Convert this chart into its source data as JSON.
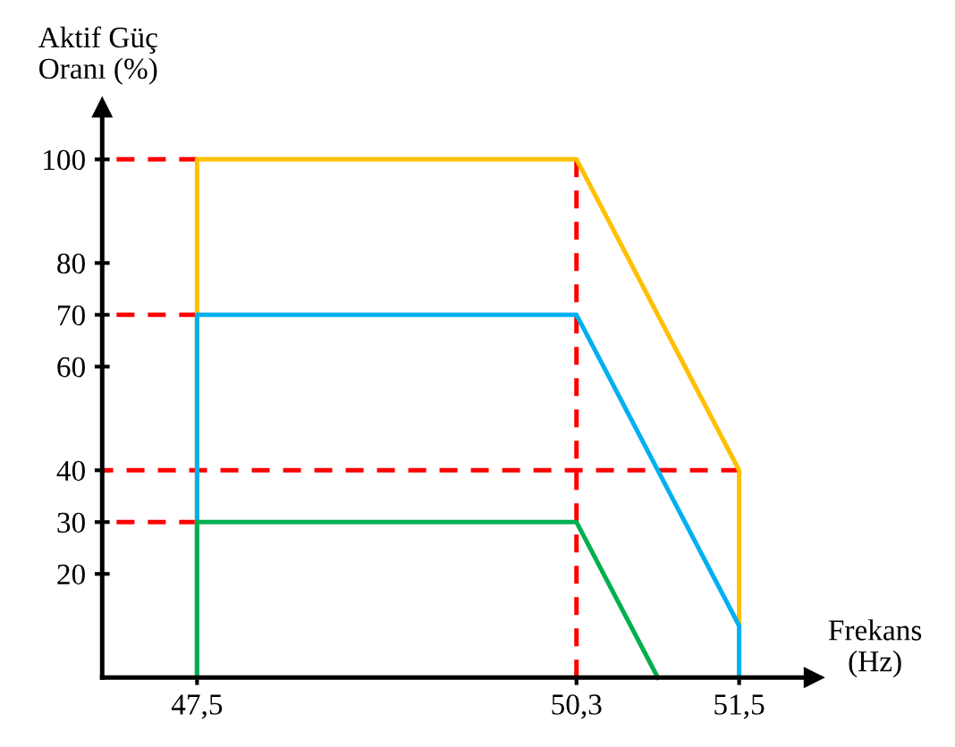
{
  "chart_data": {
    "type": "line",
    "xlabel": "Frekans\n(Hz)",
    "ylabel": "Aktif Güç\nOranı (%)",
    "xlim": [
      46.8,
      52.05
    ],
    "ylim": [
      0,
      110
    ],
    "xticks": [
      {
        "value": 47.5,
        "label": "47,5"
      },
      {
        "value": 50.3,
        "label": "50,3"
      },
      {
        "value": 51.5,
        "label": "51,5"
      }
    ],
    "yticks": [
      20,
      30,
      40,
      60,
      70,
      80,
      100
    ],
    "grid": false,
    "marker": "none",
    "series": [
      {
        "color": "#ff0000",
        "line_style": "dashed",
        "x": [
          46.8,
          47.5
        ],
        "values": [
          100,
          100
        ]
      },
      {
        "color": "#ff0000",
        "line_style": "dashed",
        "x": [
          46.8,
          47.5
        ],
        "values": [
          70,
          70
        ]
      },
      {
        "color": "#ff0000",
        "line_style": "dashed",
        "x": [
          46.8,
          51.5
        ],
        "values": [
          40,
          40
        ]
      },
      {
        "color": "#ff0000",
        "line_style": "dashed",
        "x": [
          46.8,
          47.5
        ],
        "values": [
          30,
          30
        ]
      },
      {
        "color": "#ff0000",
        "line_style": "dashed",
        "x": [
          50.3,
          50.3
        ],
        "values": [
          0,
          100
        ]
      },
      {
        "color": "#ffc000",
        "line_style": "solid",
        "x": [
          47.5,
          47.5,
          50.3,
          51.5,
          51.5
        ],
        "values": [
          0,
          100,
          100,
          40,
          0
        ]
      },
      {
        "color": "#00b0f0",
        "line_style": "solid",
        "x": [
          47.5,
          47.5,
          50.3,
          51.5,
          51.5
        ],
        "values": [
          0,
          70,
          70,
          10,
          0
        ]
      },
      {
        "color": "#00b050",
        "line_style": "solid",
        "x": [
          47.5,
          47.5,
          50.3,
          50.9
        ],
        "values": [
          0,
          30,
          30,
          0
        ]
      }
    ]
  }
}
